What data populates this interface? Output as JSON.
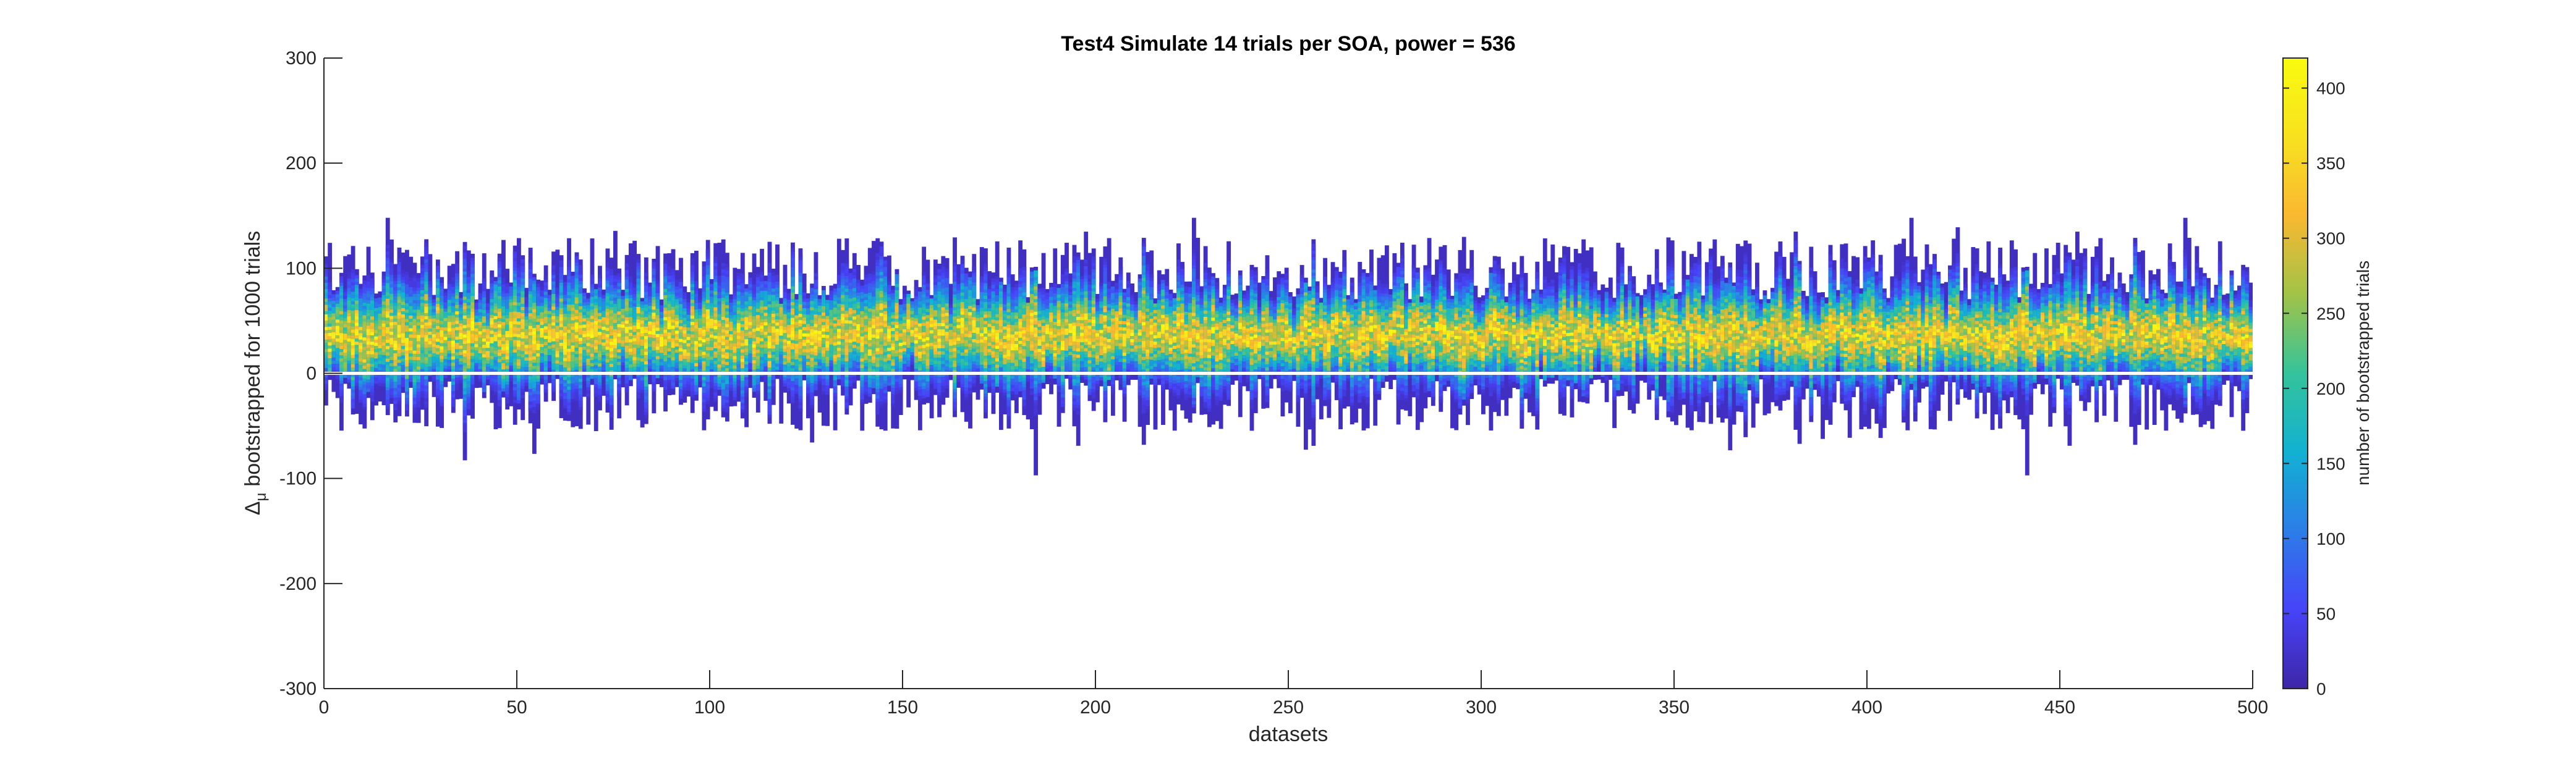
{
  "chart_data": {
    "type": "heatmap",
    "title": "Test4 Simulate 14 trials per SOA, power = 536",
    "xlabel": "datasets",
    "ylabel_symbol": "Δ",
    "ylabel_sub": "μ",
    "ylabel_rest": "bootstrapped for 1000 trials",
    "xlim": [
      0,
      500
    ],
    "ylim": [
      -300,
      300
    ],
    "xticks": [
      "0",
      "50",
      "100",
      "150",
      "200",
      "250",
      "300",
      "350",
      "400",
      "450",
      "500"
    ],
    "yticks": [
      "300",
      "200",
      "100",
      "0",
      "-100",
      "-200",
      "-300"
    ],
    "num_datasets": 500,
    "typical_distribution": {
      "center": 35,
      "upper_extent": 100,
      "lower_extent": -30
    },
    "observed_extremes": {
      "max": 148,
      "min": -98
    },
    "colorbar": {
      "label": "number of bootstrapped trials",
      "range": [
        0,
        420
      ],
      "ticks": [
        "0",
        "50",
        "100",
        "150",
        "200",
        "250",
        "300",
        "350",
        "400"
      ],
      "colormap": [
        "#3e26a8",
        "#4743f8",
        "#2c7de8",
        "#12b1d2",
        "#34c39b",
        "#a1c348",
        "#f9b831",
        "#f8e21f",
        "#f9fb0e"
      ]
    },
    "zero_line_color": "#ffffff"
  }
}
